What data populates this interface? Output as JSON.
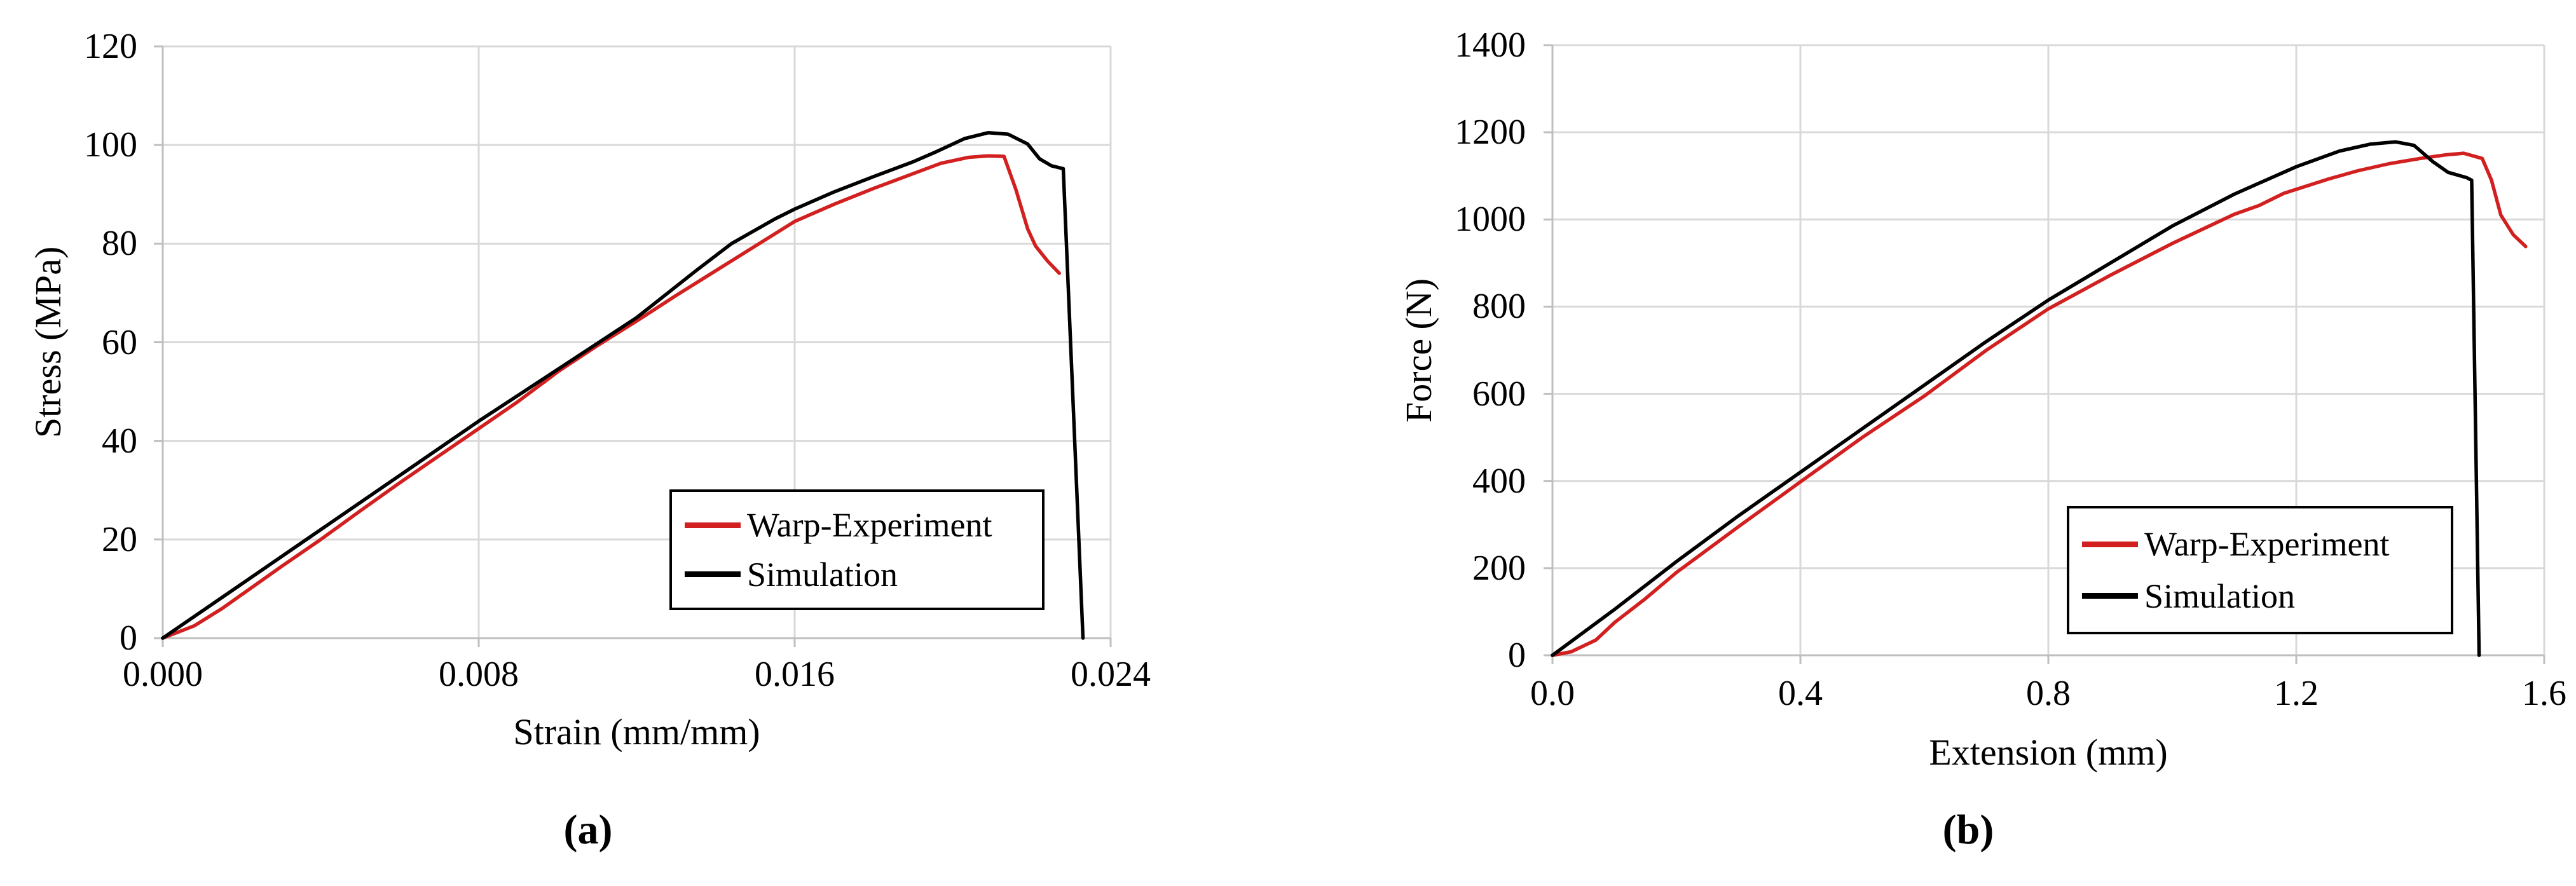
{
  "figure_background": "#ffffff",
  "style_colors": {
    "gridline": "#d9d9d9",
    "axis_line": "#bfbfbf",
    "experiment_red": "#d22020",
    "simulation_black": "#000000"
  },
  "chart_data": [
    {
      "id": "a",
      "type": "line",
      "caption": "(a)",
      "title": "",
      "xlabel": "Strain (mm/mm)",
      "ylabel": "Stress (MPa)",
      "xlim": [
        0,
        0.024
      ],
      "ylim": [
        0,
        120
      ],
      "x_ticks": [
        0,
        0.008,
        0.016,
        0.024
      ],
      "x_tick_labels": [
        "0.000",
        "0.008",
        "0.016",
        "0.024"
      ],
      "y_ticks": [
        0,
        20,
        40,
        60,
        80,
        100,
        120
      ],
      "y_tick_labels": [
        "0",
        "20",
        "40",
        "60",
        "80",
        "100",
        "120"
      ],
      "grid": true,
      "legend_position": "inside-lower-right",
      "series": [
        {
          "name": "Warp-Experiment",
          "color": "#d22020",
          "x": [
            0,
            0.0008,
            0.0015,
            0.003,
            0.004,
            0.005,
            0.006,
            0.007,
            0.008,
            0.009,
            0.01,
            0.011,
            0.012,
            0.013,
            0.014,
            0.015,
            0.016,
            0.017,
            0.018,
            0.019,
            0.0197,
            0.0204,
            0.0209,
            0.0213,
            0.0216,
            0.0219,
            0.0221,
            0.0224,
            0.0227
          ],
          "y": [
            0,
            2.5,
            6,
            14.5,
            20,
            25.8,
            31.5,
            37,
            42.5,
            48,
            54,
            59.3,
            64.3,
            69.5,
            74.5,
            79.5,
            84.5,
            88,
            91.2,
            94.2,
            96.3,
            97.5,
            97.8,
            97.7,
            91,
            83,
            79.5,
            76.5,
            74
          ]
        },
        {
          "name": "Simulation",
          "color": "#000000",
          "x": [
            0,
            0.002,
            0.004,
            0.006,
            0.008,
            0.01,
            0.012,
            0.0135,
            0.0144,
            0.0155,
            0.016,
            0.017,
            0.018,
            0.019,
            0.0196,
            0.0203,
            0.0209,
            0.0214,
            0.0219,
            0.0222,
            0.0225,
            0.0228,
            0.0233
          ],
          "y": [
            0,
            11,
            22,
            33,
            44,
            54.5,
            65,
            74.5,
            80,
            85,
            87,
            90.5,
            93.6,
            96.6,
            98.7,
            101.3,
            102.5,
            102.2,
            100.2,
            97.2,
            95.8,
            95.2,
            0
          ]
        }
      ]
    },
    {
      "id": "b",
      "type": "line",
      "caption": "(b)",
      "title": "",
      "xlabel": "Extension (mm)",
      "ylabel": "Force (N)",
      "xlim": [
        0,
        1.6
      ],
      "ylim": [
        0,
        1400
      ],
      "x_ticks": [
        0,
        0.4,
        0.8,
        1.2,
        1.6
      ],
      "x_tick_labels": [
        "0.0",
        "0.4",
        "0.8",
        "1.2",
        "1.6"
      ],
      "y_ticks": [
        0,
        200,
        400,
        600,
        800,
        1000,
        1200,
        1400
      ],
      "y_tick_labels": [
        "0",
        "200",
        "400",
        "600",
        "800",
        "1000",
        "1200",
        "1400"
      ],
      "grid": true,
      "legend_position": "inside-lower-right",
      "series": [
        {
          "name": "Warp-Experiment",
          "color": "#d22020",
          "x": [
            0,
            0.03,
            0.07,
            0.1,
            0.15,
            0.2,
            0.3,
            0.4,
            0.5,
            0.6,
            0.7,
            0.8,
            0.9,
            1.0,
            1.1,
            1.14,
            1.18,
            1.25,
            1.3,
            1.35,
            1.4,
            1.44,
            1.47,
            1.5,
            1.515,
            1.53,
            1.55,
            1.57
          ],
          "y": [
            0,
            8,
            35,
            75,
            130,
            190,
            295,
            398,
            500,
            595,
            700,
            795,
            872,
            945,
            1012,
            1032,
            1060,
            1092,
            1112,
            1128,
            1140,
            1148,
            1152,
            1140,
            1090,
            1010,
            965,
            938
          ]
        },
        {
          "name": "Simulation",
          "color": "#000000",
          "x": [
            0,
            0.1,
            0.2,
            0.3,
            0.4,
            0.5,
            0.6,
            0.7,
            0.8,
            0.9,
            1.0,
            1.1,
            1.2,
            1.27,
            1.32,
            1.36,
            1.39,
            1.42,
            1.445,
            1.475,
            1.483,
            1.495
          ],
          "y": [
            0,
            105,
            215,
            320,
            420,
            520,
            620,
            720,
            815,
            900,
            985,
            1058,
            1121,
            1157,
            1173,
            1178,
            1170,
            1133,
            1108,
            1096,
            1090,
            0
          ]
        }
      ]
    }
  ]
}
